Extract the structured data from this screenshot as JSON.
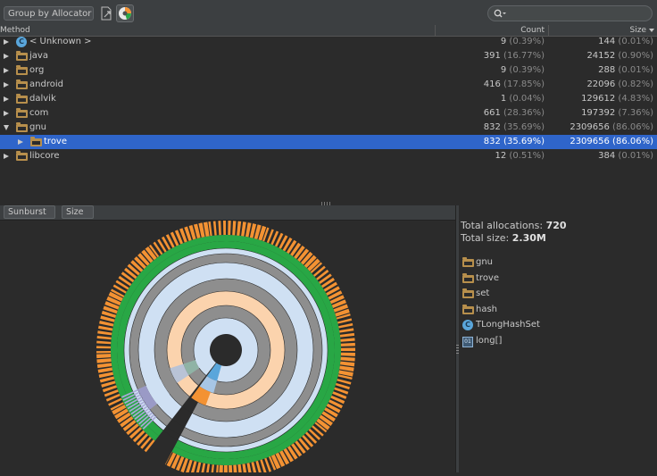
{
  "toolbar": {
    "group_by": "Group by Allocator",
    "export_icon": "export-icon",
    "chart_icon": "sunburst-chart-icon",
    "search_icon": "search-icon",
    "search_value": ""
  },
  "table": {
    "columns": [
      "Method",
      "Count",
      "Size"
    ],
    "sort_indicator": "sort-descending-icon",
    "rows": [
      {
        "name": "< Unknown >",
        "icon": "class-icon",
        "count": "9",
        "count_pct": "(0.39%)",
        "size": "144",
        "size_pct": "(0.01%)",
        "expanded": false,
        "selected": false,
        "indent": 0
      },
      {
        "name": "java",
        "icon": "package-folder-icon",
        "count": "391",
        "count_pct": "(16.77%)",
        "size": "24152",
        "size_pct": "(0.90%)",
        "expanded": false,
        "selected": false,
        "indent": 0
      },
      {
        "name": "org",
        "icon": "package-folder-icon",
        "count": "9",
        "count_pct": "(0.39%)",
        "size": "288",
        "size_pct": "(0.01%)",
        "expanded": false,
        "selected": false,
        "indent": 0
      },
      {
        "name": "android",
        "icon": "package-folder-icon",
        "count": "416",
        "count_pct": "(17.85%)",
        "size": "22096",
        "size_pct": "(0.82%)",
        "expanded": false,
        "selected": false,
        "indent": 0
      },
      {
        "name": "dalvik",
        "icon": "package-folder-icon",
        "count": "1",
        "count_pct": "(0.04%)",
        "size": "129612",
        "size_pct": "(4.83%)",
        "expanded": false,
        "selected": false,
        "indent": 0
      },
      {
        "name": "com",
        "icon": "package-folder-icon",
        "count": "661",
        "count_pct": "(28.36%)",
        "size": "197392",
        "size_pct": "(7.36%)",
        "expanded": false,
        "selected": false,
        "indent": 0
      },
      {
        "name": "gnu",
        "icon": "package-folder-icon",
        "count": "832",
        "count_pct": "(35.69%)",
        "size": "2309656",
        "size_pct": "(86.06%)",
        "expanded": true,
        "selected": false,
        "indent": 0
      },
      {
        "name": "trove",
        "icon": "package-folder-icon",
        "count": "832",
        "count_pct": "(35.69%)",
        "size": "2309656",
        "size_pct": "(86.06%)",
        "expanded": false,
        "selected": true,
        "indent": 1
      },
      {
        "name": "libcore",
        "icon": "package-folder-icon",
        "count": "12",
        "count_pct": "(0.51%)",
        "size": "384",
        "size_pct": "(0.01%)",
        "expanded": false,
        "selected": false,
        "indent": 0
      }
    ]
  },
  "chart_controls": {
    "chart_type": "Sunburst",
    "metric": "Size"
  },
  "info": {
    "total_allocations_label": "Total allocations:",
    "total_allocations_value": "720",
    "total_size_label": "Total size:",
    "total_size_value": "2.30M",
    "path": [
      {
        "name": "gnu",
        "icon": "package-folder-icon"
      },
      {
        "name": "trove",
        "icon": "package-folder-icon"
      },
      {
        "name": "set",
        "icon": "package-folder-icon"
      },
      {
        "name": "hash",
        "icon": "package-folder-icon"
      },
      {
        "name": "TLongHashSet",
        "icon": "class-icon"
      },
      {
        "name": "long[]",
        "icon": "array-icon"
      }
    ]
  },
  "colors": {
    "selection": "#2f65ca",
    "folder": "#b78f4c",
    "class_icon": "#5aa6db",
    "ring_light_blue": "#cfe0f3",
    "ring_gray": "#8e8e8e",
    "ring_peach": "#fbd3ad",
    "ring_green": "#28a745",
    "ring_orange": "#f39233"
  }
}
